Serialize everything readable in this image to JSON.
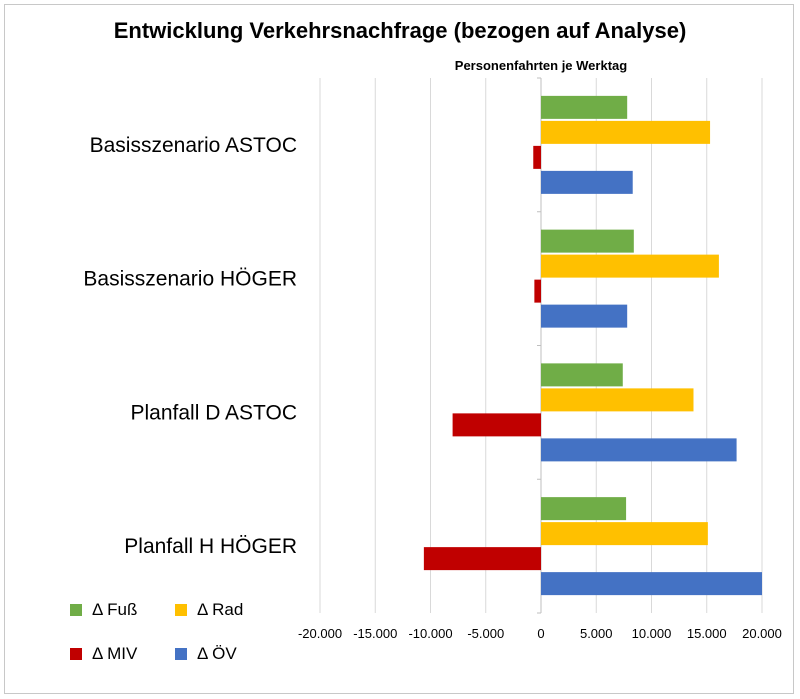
{
  "chart_data": {
    "type": "bar",
    "orientation": "horizontal",
    "title": "Entwicklung Verkehrsnachfrage (bezogen auf Analyse)",
    "xlabel": "Personenfahrten je Werktag",
    "categories": [
      "Basisszenario ASTOC",
      "Basisszenario HÖGER",
      "Planfall D ASTOC",
      "Planfall H HÖGER"
    ],
    "series": [
      {
        "name": "Δ Fuß",
        "color": "#70ad47",
        "values": [
          7800,
          8400,
          7400,
          7700
        ]
      },
      {
        "name": "Δ Rad",
        "color": "#ffc000",
        "values": [
          15300,
          16100,
          13800,
          15100
        ]
      },
      {
        "name": "Δ MIV",
        "color": "#c00000",
        "values": [
          -700,
          -600,
          -8000,
          -10600
        ]
      },
      {
        "name": "Δ ÖV",
        "color": "#4472c4",
        "values": [
          8300,
          7800,
          17700,
          20000
        ]
      }
    ],
    "xlim": [
      -20000,
      20000
    ],
    "xticks": [
      -20000,
      -15000,
      -10000,
      -5000,
      0,
      5000,
      10000,
      15000,
      20000
    ],
    "xtick_labels": [
      "-20.000",
      "-15.000",
      "-10.000",
      "-5.000",
      "0",
      "5.000",
      "10.000",
      "15.000",
      "20.000"
    ],
    "grid": true,
    "legend": "bottom-left"
  },
  "legend_items": [
    {
      "label": "Δ Fuß",
      "color": "#70ad47"
    },
    {
      "label": "Δ Rad",
      "color": "#ffc000"
    },
    {
      "label": "Δ MIV",
      "color": "#c00000"
    },
    {
      "label": "Δ ÖV",
      "color": "#4472c4"
    }
  ]
}
